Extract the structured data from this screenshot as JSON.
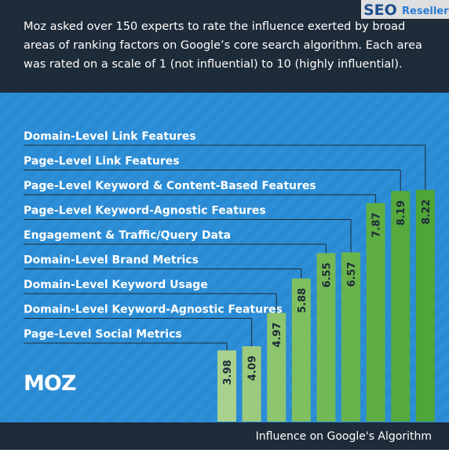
{
  "chart_data": {
    "type": "bar",
    "subtitle": [
      "Moz asked over 150 experts to rate the influence exerted by broad",
      "areas of ranking factors on Google’s core search algorithm. Each area",
      "was rated on a scale of 1 (not influential) to 10 (highly influential)."
    ],
    "watermark": [
      "SEO",
      "Resellers"
    ],
    "logo": "MOZ",
    "xlabel": "Influence on Google's Algorithm",
    "categories": [
      "Page-Level Social Metrics",
      "Domain-Level Keyword-Agnostic Features",
      "Domain-Level Keyword Usage",
      "Domain-Level Brand Metrics",
      "Engagement & Traffic/Query Data",
      "Page-Level Keyword-Agnostic Features",
      "Page-Level Keyword & Content-Based Features",
      "Page-Level Link Features",
      "Domain-Level Link Features"
    ],
    "values": [
      3.98,
      4.09,
      4.97,
      5.88,
      6.55,
      6.57,
      7.87,
      8.19,
      8.22
    ],
    "colors": [
      "#a9d18e",
      "#9ccb7e",
      "#8dc56f",
      "#7fbf60",
      "#72b955",
      "#68b44c",
      "#5eae44",
      "#55a93d",
      "#4ea538"
    ],
    "ylim": [
      2.1,
      10
    ]
  }
}
